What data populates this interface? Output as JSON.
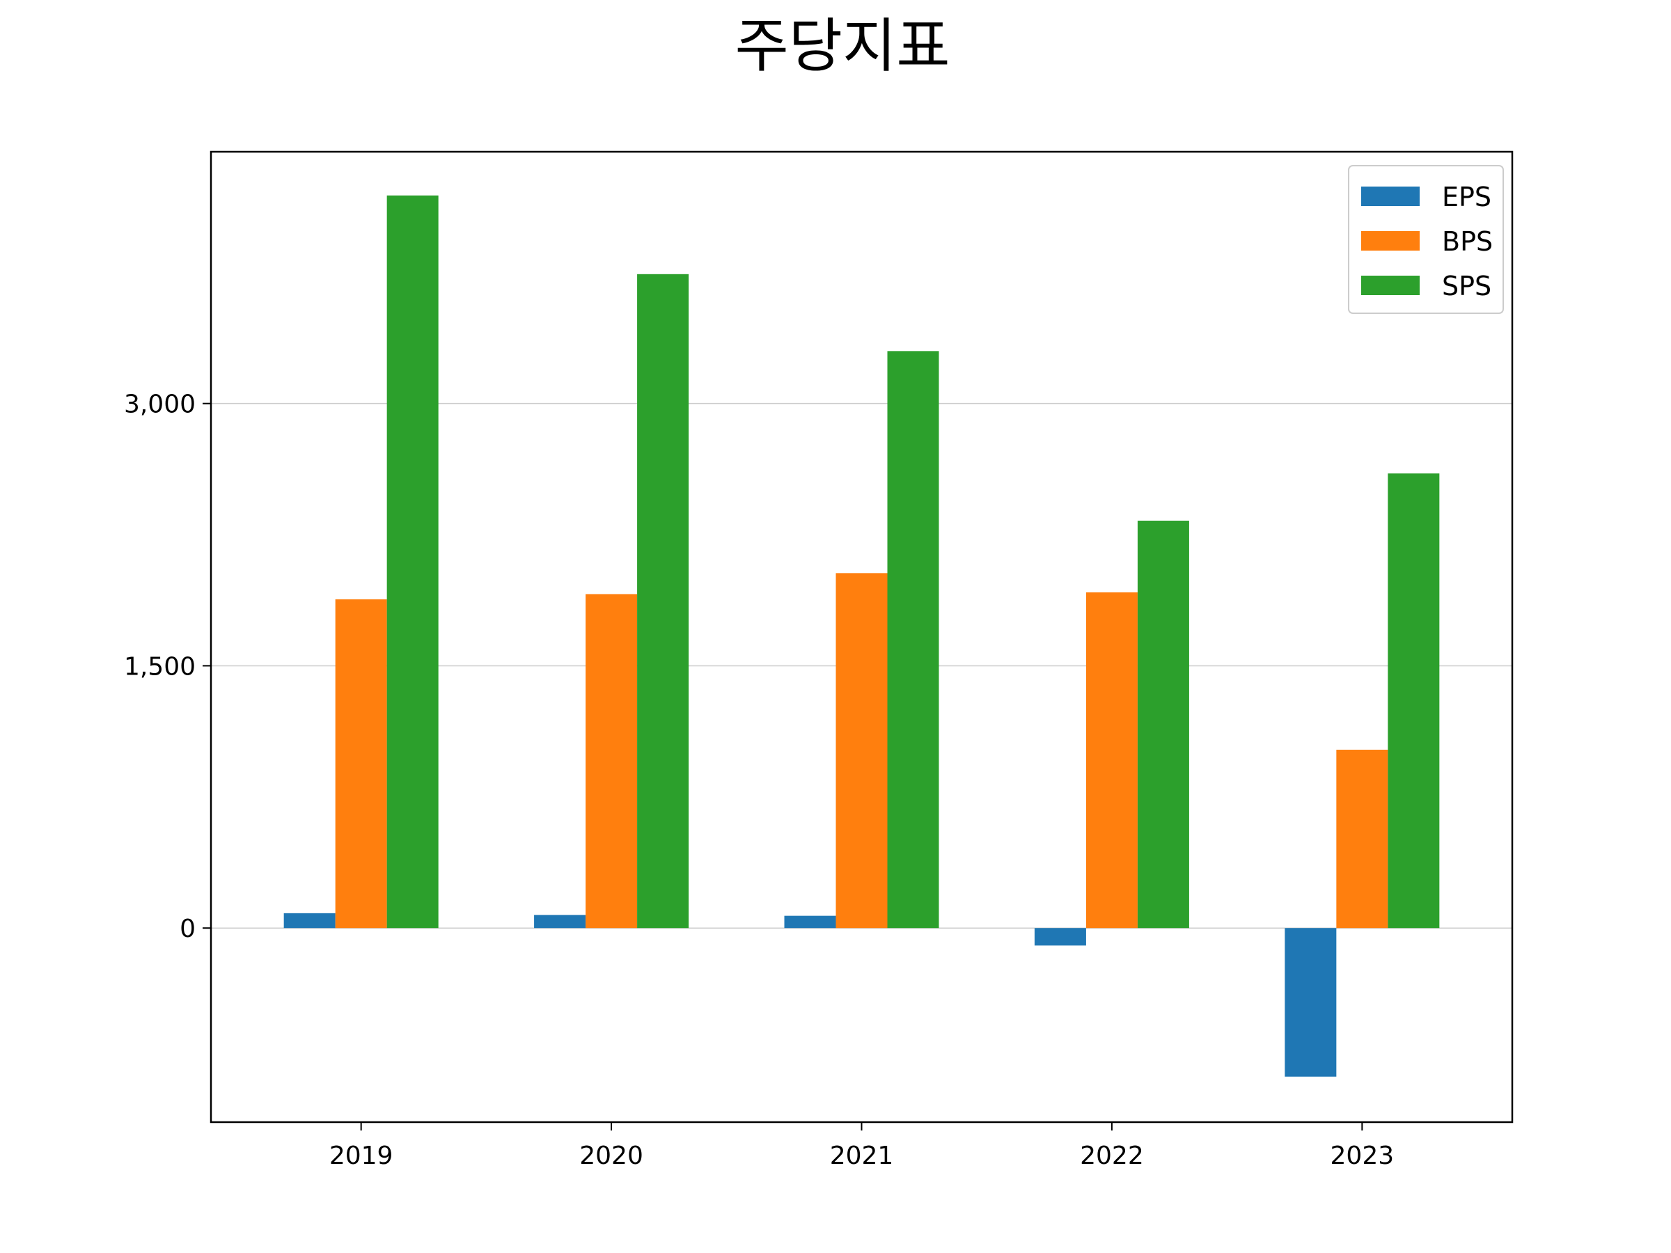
{
  "chart_data": {
    "type": "bar",
    "title": "주당지표",
    "xlabel": "",
    "ylabel": "",
    "categories": [
      "2019",
      "2020",
      "2021",
      "2022",
      "2023"
    ],
    "series": [
      {
        "name": "EPS",
        "color": "#1f77b4",
        "values": [
          85,
          75,
          70,
          -100,
          -850
        ]
      },
      {
        "name": "BPS",
        "color": "#ff7f0e",
        "values": [
          1880,
          1910,
          2030,
          1920,
          1020
        ]
      },
      {
        "name": "SPS",
        "color": "#2ca02c",
        "values": [
          4190,
          3740,
          3300,
          2330,
          2600
        ]
      }
    ],
    "yticks": [
      0,
      1500,
      3000
    ],
    "ytick_labels": [
      "0",
      "1,500",
      "3,000"
    ],
    "ylim": [
      -1110,
      4440
    ],
    "grid": "y",
    "legend": "top-right"
  }
}
